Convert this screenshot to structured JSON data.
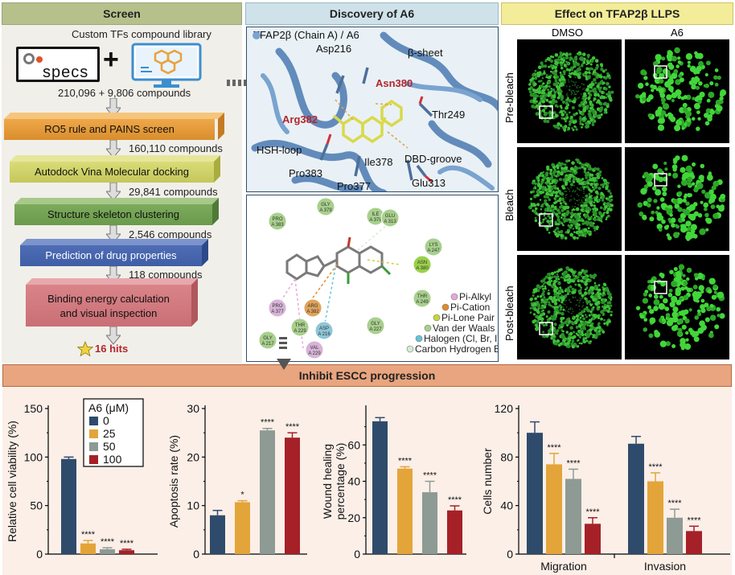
{
  "headers": {
    "screen": "Screen",
    "discovery": "Discovery of A6",
    "effect": "Effect on TFAP2β LLPS",
    "inhibit": "Inhibit ESCC progression"
  },
  "screen": {
    "library_title": "Custom TFs compound library",
    "specs_logo": "specs",
    "plus": "+",
    "compounds_0": "210,096 + 9,806 compounds",
    "step_1": "RO5 rule and PAINS screen",
    "compounds_1": "160,110 compounds",
    "step_2": "Autodock Vina Molecular docking",
    "compounds_2": "29,841 compounds",
    "step_3": "Structure skeleton clustering",
    "compounds_3": "2,546 compounds",
    "step_4": "Prediction of drug properties",
    "compounds_4": "118 compounds",
    "step_5_line1": "Binding energy calculation",
    "step_5_line2": "and visual inspection",
    "hits": "16 hits"
  },
  "docking": {
    "title": "TFAP2β (Chain A) / A6",
    "labels": [
      "Asp216",
      "β-sheet",
      "Asn380",
      "Arg382",
      "Thr249",
      "HSH-loop",
      "DBD-groove",
      "Ile378",
      "Pro383",
      "Pro377",
      "Glu313"
    ]
  },
  "interaction": {
    "residues": [
      {
        "name": "GLY\nA 379",
        "color": "#a8d08d"
      },
      {
        "name": "PRO\nA 383",
        "color": "#a8d08d"
      },
      {
        "name": "ILE\nA 378",
        "color": "#a8d08d"
      },
      {
        "name": "GLU\nA 313",
        "color": "#a8d08d"
      },
      {
        "name": "LYS\nA 247",
        "color": "#a8d08d"
      },
      {
        "name": "ASN\nA 380",
        "color": "#9bd14a"
      },
      {
        "name": "PRO\nA 377",
        "color": "#d8b4d8"
      },
      {
        "name": "ARG\nA 382",
        "color": "#e0a35c"
      },
      {
        "name": "THR\nA 249",
        "color": "#a8d08d"
      },
      {
        "name": "THR\nA 229",
        "color": "#a8d08d"
      },
      {
        "name": "ASP\nA 216",
        "color": "#8fc6d8"
      },
      {
        "name": "GLY\nA 227",
        "color": "#a8d08d"
      },
      {
        "name": "GLY\nA 217",
        "color": "#a8d08d"
      },
      {
        "name": "VAL\nA 229",
        "color": "#d8b4d8"
      }
    ],
    "legend": [
      {
        "label": "Pi-Alkyl",
        "color": "#e6a8d8"
      },
      {
        "label": "Pi-Cation",
        "color": "#e08a2e"
      },
      {
        "label": "Pi-Lone Pair",
        "color": "#c8d43c"
      },
      {
        "label": "Van der Waals",
        "color": "#a8d08d"
      },
      {
        "label": "Halogen (Cl, Br, I)",
        "color": "#63c5d6"
      },
      {
        "label": "Carbon Hydrogen Bond",
        "color": "#d4ecd4"
      }
    ]
  },
  "llps": {
    "columns": [
      "DMSO",
      "A6"
    ],
    "rows": [
      "Pre-bleach",
      "Bleach",
      "Post-bleach"
    ]
  },
  "colors": {
    "c0": "#2f4b6b",
    "c25": "#e3a53a",
    "c50": "#8e9a94",
    "c100": "#a52127"
  },
  "chart_data": [
    {
      "type": "bar",
      "ylabel": "Relative cell viability (%)",
      "ylim": [
        0,
        150
      ],
      "yticks": [
        "0",
        "50",
        "100",
        "150"
      ],
      "legend_title": "A6 (μM)",
      "series": [
        {
          "name": "0",
          "value": 98,
          "error": 2,
          "sig": ""
        },
        {
          "name": "25",
          "value": 11,
          "error": 3,
          "sig": "****"
        },
        {
          "name": "50",
          "value": 5,
          "error": 1.5,
          "sig": "****"
        },
        {
          "name": "100",
          "value": 4,
          "error": 1,
          "sig": "****"
        }
      ]
    },
    {
      "type": "bar",
      "ylabel": "Apoptosis rate (%)",
      "ylim": [
        0,
        30
      ],
      "yticks": [
        "0",
        "10",
        "20",
        "30"
      ],
      "series": [
        {
          "name": "0",
          "value": 8,
          "error": 1,
          "sig": ""
        },
        {
          "name": "25",
          "value": 10.7,
          "error": 0.3,
          "sig": "*"
        },
        {
          "name": "50",
          "value": 25.5,
          "error": 0.4,
          "sig": "****"
        },
        {
          "name": "100",
          "value": 24,
          "error": 1,
          "sig": "****"
        }
      ]
    },
    {
      "type": "bar",
      "ylabel_line1": "Wound healing",
      "ylabel_line2": "percentage (%)",
      "ylim": [
        0,
        80
      ],
      "yticks": [
        "0",
        "20",
        "40",
        "60"
      ],
      "series": [
        {
          "name": "0",
          "value": 73,
          "error": 2,
          "sig": ""
        },
        {
          "name": "25",
          "value": 47,
          "error": 1,
          "sig": "****"
        },
        {
          "name": "50",
          "value": 34,
          "error": 6,
          "sig": "****"
        },
        {
          "name": "100",
          "value": 24,
          "error": 2.5,
          "sig": "****"
        }
      ]
    },
    {
      "type": "bar",
      "ylabel": "Cells number",
      "ylim": [
        0,
        120
      ],
      "yticks": [
        "0",
        "40",
        "80",
        "120"
      ],
      "categories": [
        "Migration",
        "Invasion"
      ],
      "series": [
        {
          "name": "0",
          "values": [
            100,
            91
          ],
          "errors": [
            9,
            6
          ],
          "sigs": [
            "",
            ""
          ]
        },
        {
          "name": "25",
          "values": [
            74,
            60
          ],
          "errors": [
            9,
            7
          ],
          "sigs": [
            "****",
            "****"
          ]
        },
        {
          "name": "50",
          "values": [
            62,
            30
          ],
          "errors": [
            8,
            7
          ],
          "sigs": [
            "****",
            "****"
          ]
        },
        {
          "name": "100",
          "values": [
            25,
            19
          ],
          "errors": [
            5,
            4
          ],
          "sigs": [
            "****",
            "****"
          ]
        }
      ]
    }
  ]
}
